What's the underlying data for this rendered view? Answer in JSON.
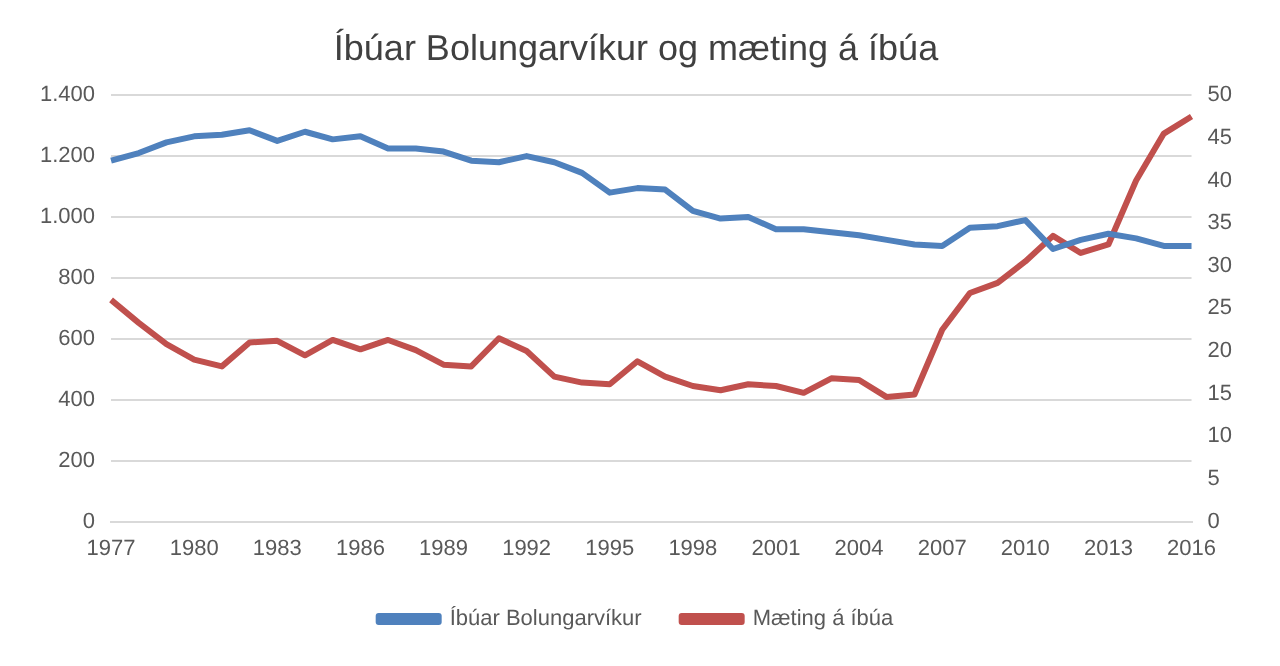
{
  "chart_data": {
    "type": "line",
    "title": "Íbúar Bolungarvíkur og mæting á íbúa",
    "categories": [
      "1977",
      null,
      null,
      "1980",
      null,
      null,
      "1983",
      null,
      null,
      "1986",
      null,
      null,
      "1989",
      null,
      null,
      "1992",
      null,
      null,
      "1995",
      null,
      null,
      "1998",
      null,
      null,
      "2001",
      null,
      null,
      "2004",
      null,
      null,
      "2007",
      null,
      null,
      "2010",
      null,
      null,
      "2013",
      null,
      null,
      "2016"
    ],
    "series": [
      {
        "name": "Íbúar Bolungarvíkur",
        "color": "#4f81bd",
        "values": [
          1185,
          1210,
          1245,
          1265,
          1270,
          1285,
          1250,
          1280,
          1255,
          1265,
          1225,
          1225,
          1215,
          1185,
          1180,
          1200,
          1180,
          1145,
          1080,
          1095,
          1090,
          1020,
          995,
          1000,
          960,
          960,
          950,
          940,
          925,
          910,
          905,
          965,
          970,
          990,
          895,
          925,
          945,
          930,
          905,
          905
        ]
      },
      {
        "name": "Mæting á íbúa",
        "color": "#c0504d",
        "axis": "y2",
        "values": [
          26,
          23.3,
          20.8,
          19,
          18.2,
          21,
          21.2,
          19.5,
          21.3,
          20.2,
          21.3,
          20.1,
          18.4,
          18.2,
          21.5,
          20,
          17,
          16.3,
          16.1,
          18.8,
          17,
          15.9,
          15.4,
          16.1,
          15.9,
          15.1,
          16.8,
          16.6,
          14.6,
          14.9,
          22.5,
          26.8,
          28,
          30.5,
          33.5,
          31.5,
          32.5,
          40,
          45.5,
          47.5
        ]
      }
    ],
    "ylim": [
      0,
      1400
    ],
    "yticks": [
      0,
      {
        "value": 200,
        "label": "200"
      },
      {
        "value": 400,
        "label": "400"
      },
      {
        "value": 600,
        "label": "600"
      },
      {
        "value": 800,
        "label": "800"
      },
      {
        "value": 1000,
        "label": "1.000"
      },
      {
        "value": 1200,
        "label": "1.200"
      },
      {
        "value": 1400,
        "label": "1.400"
      }
    ],
    "y2lim": [
      0,
      50
    ],
    "y2ticks": [
      0,
      5,
      10,
      15,
      20,
      25,
      30,
      35,
      40,
      45,
      50
    ],
    "grid": "y",
    "legend": "bottom",
    "marker": "none",
    "line_style": "solid"
  }
}
